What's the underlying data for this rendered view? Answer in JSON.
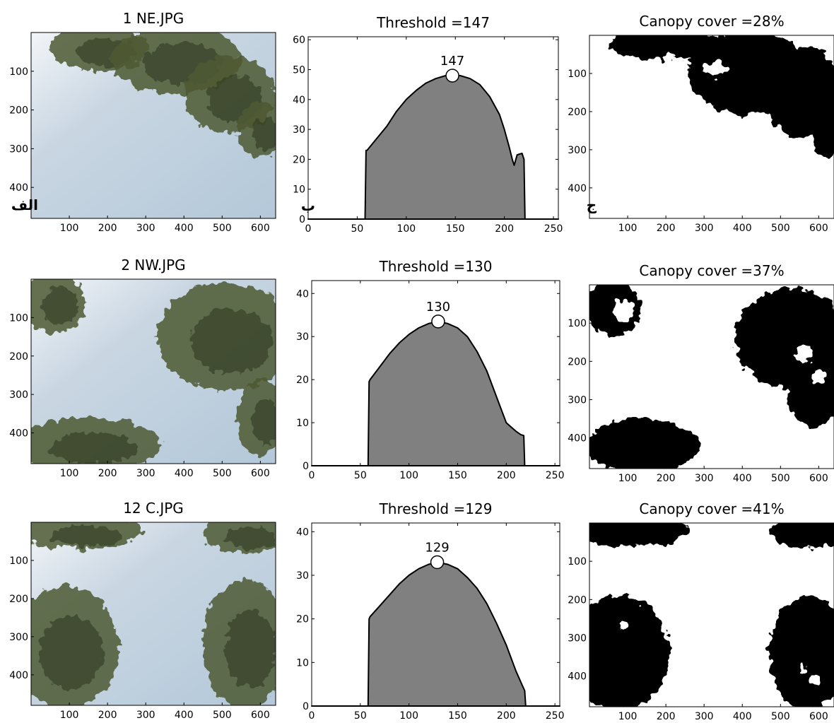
{
  "chart_data": [
    {
      "type": "image",
      "title": "1 NE.JPG",
      "panel_label": "الف",
      "x_ticks": [
        100,
        200,
        300,
        400,
        500,
        600
      ],
      "y_ticks": [
        100,
        200,
        300,
        400
      ],
      "xlim": [
        0,
        640
      ],
      "ylim": [
        0,
        480
      ],
      "foliage": [
        {
          "cx": 180,
          "cy": 40,
          "rx": 130,
          "ry": 60
        },
        {
          "cx": 380,
          "cy": 70,
          "rx": 170,
          "ry": 90
        },
        {
          "cx": 520,
          "cy": 160,
          "rx": 120,
          "ry": 100
        },
        {
          "cx": 600,
          "cy": 250,
          "rx": 60,
          "ry": 70
        }
      ]
    },
    {
      "type": "area",
      "title": "Threshold =147",
      "panel_label": "ب",
      "threshold": 147,
      "threshold_label": "147",
      "x_ticks": [
        0,
        50,
        100,
        150,
        200,
        250
      ],
      "y_ticks": [
        0,
        10,
        20,
        30,
        40,
        50,
        60
      ],
      "xlim": [
        0,
        255
      ],
      "ylim": [
        0,
        61
      ],
      "x": [
        0,
        58,
        59,
        60,
        70,
        80,
        90,
        100,
        110,
        120,
        130,
        140,
        147,
        155,
        165,
        175,
        185,
        195,
        200,
        205,
        208,
        210,
        213,
        218,
        220,
        221,
        255
      ],
      "y": [
        0,
        0,
        23,
        23,
        27,
        31,
        36,
        40,
        43,
        45.5,
        47,
        48,
        48,
        48,
        47,
        45,
        41,
        35,
        30,
        24,
        20,
        18,
        21.5,
        22,
        20,
        0,
        0
      ]
    },
    {
      "type": "heatmap",
      "title": "Canopy cover =28%",
      "panel_label": "ج",
      "x_ticks": [
        100,
        200,
        300,
        400,
        500,
        600
      ],
      "y_ticks": [
        100,
        200,
        300,
        400
      ],
      "xlim": [
        0,
        640
      ],
      "ylim": [
        0,
        480
      ],
      "canopy": [
        {
          "cx": 200,
          "cy": 25,
          "rx": 150,
          "ry": 40
        },
        {
          "cx": 420,
          "cy": 100,
          "rx": 160,
          "ry": 110
        },
        {
          "cx": 560,
          "cy": 150,
          "rx": 100,
          "ry": 120
        },
        {
          "cx": 620,
          "cy": 260,
          "rx": 40,
          "ry": 60
        }
      ],
      "gaps": [
        {
          "cx": 330,
          "cy": 90,
          "rx": 35,
          "ry": 20
        },
        {
          "cx": 210,
          "cy": 60,
          "rx": 18,
          "ry": 14
        }
      ]
    },
    {
      "type": "image",
      "title": "2 NW.JPG",
      "panel_label": "",
      "x_ticks": [
        100,
        200,
        300,
        400,
        500,
        600
      ],
      "y_ticks": [
        100,
        200,
        300,
        400
      ],
      "xlim": [
        0,
        640
      ],
      "ylim": [
        0,
        480
      ],
      "foliage": [
        {
          "cx": 60,
          "cy": 60,
          "rx": 80,
          "ry": 80
        },
        {
          "cx": 510,
          "cy": 150,
          "rx": 180,
          "ry": 140
        },
        {
          "cx": 600,
          "cy": 360,
          "rx": 60,
          "ry": 100
        },
        {
          "cx": 150,
          "cy": 430,
          "rx": 190,
          "ry": 70
        }
      ]
    },
    {
      "type": "area",
      "title": "Threshold =130",
      "panel_label": "",
      "threshold": 130,
      "threshold_label": "130",
      "x_ticks": [
        0,
        50,
        100,
        150,
        200,
        250
      ],
      "y_ticks": [
        0,
        10,
        20,
        30,
        40
      ],
      "xlim": [
        0,
        255
      ],
      "ylim": [
        0,
        43
      ],
      "x": [
        0,
        58,
        59,
        60,
        70,
        80,
        90,
        100,
        110,
        120,
        130,
        140,
        150,
        160,
        170,
        180,
        190,
        195,
        200,
        205,
        210,
        215,
        218,
        219,
        255
      ],
      "y": [
        0,
        0,
        19.5,
        20,
        23,
        26,
        28.5,
        30.5,
        32,
        33,
        33.5,
        33,
        32,
        30,
        26.5,
        22,
        16,
        13,
        10,
        9,
        8,
        7.2,
        7,
        0,
        0
      ]
    },
    {
      "type": "heatmap",
      "title": "Canopy cover =37%",
      "panel_label": "",
      "x_ticks": [
        100,
        200,
        300,
        400,
        500,
        600
      ],
      "y_ticks": [
        100,
        200,
        300,
        400
      ],
      "xlim": [
        0,
        640
      ],
      "ylim": [
        0,
        480
      ],
      "canopy": [
        {
          "cx": 60,
          "cy": 60,
          "rx": 70,
          "ry": 75
        },
        {
          "cx": 530,
          "cy": 140,
          "rx": 150,
          "ry": 130
        },
        {
          "cx": 590,
          "cy": 280,
          "rx": 70,
          "ry": 90
        },
        {
          "cx": 140,
          "cy": 420,
          "rx": 150,
          "ry": 70
        }
      ],
      "gaps": [
        {
          "cx": 90,
          "cy": 70,
          "rx": 28,
          "ry": 30
        },
        {
          "cx": 560,
          "cy": 180,
          "rx": 22,
          "ry": 22
        },
        {
          "cx": 600,
          "cy": 240,
          "rx": 18,
          "ry": 18
        }
      ]
    },
    {
      "type": "image",
      "title": "12 C.JPG",
      "panel_label": "",
      "x_ticks": [
        100,
        200,
        300,
        400,
        500,
        600
      ],
      "y_ticks": [
        100,
        200,
        300,
        400
      ],
      "xlim": [
        0,
        640
      ],
      "ylim": [
        0,
        480
      ],
      "foliage": [
        {
          "cx": 130,
          "cy": 25,
          "rx": 160,
          "ry": 45
        },
        {
          "cx": 560,
          "cy": 30,
          "rx": 110,
          "ry": 50
        },
        {
          "cx": 90,
          "cy": 330,
          "rx": 140,
          "ry": 160
        },
        {
          "cx": 560,
          "cy": 320,
          "rx": 110,
          "ry": 170
        }
      ]
    },
    {
      "type": "area",
      "title": "Threshold =129",
      "panel_label": "",
      "threshold": 129,
      "threshold_label": "129",
      "x_ticks": [
        0,
        50,
        100,
        150,
        200,
        250
      ],
      "y_ticks": [
        0,
        10,
        20,
        30,
        40
      ],
      "xlim": [
        0,
        255
      ],
      "ylim": [
        0,
        42
      ],
      "x": [
        0,
        58,
        59,
        60,
        70,
        80,
        90,
        100,
        110,
        120,
        129,
        140,
        150,
        160,
        170,
        180,
        190,
        200,
        210,
        215,
        219,
        220,
        255
      ],
      "y": [
        0,
        0,
        20,
        20.5,
        23,
        25.5,
        28,
        30,
        31.5,
        32.5,
        33,
        32.5,
        31.5,
        29.5,
        27,
        23.5,
        19,
        14,
        8,
        5.5,
        3.5,
        0,
        0
      ]
    },
    {
      "type": "heatmap",
      "title": "Canopy cover =41%",
      "panel_label": "",
      "x_ticks": [
        100,
        200,
        300,
        400,
        500,
        600
      ],
      "y_ticks": [
        100,
        200,
        300,
        400
      ],
      "xlim": [
        0,
        640
      ],
      "ylim": [
        0,
        480
      ],
      "canopy": [
        {
          "cx": 110,
          "cy": 20,
          "rx": 150,
          "ry": 40
        },
        {
          "cx": 570,
          "cy": 25,
          "rx": 100,
          "ry": 40
        },
        {
          "cx": 80,
          "cy": 340,
          "rx": 130,
          "ry": 150
        },
        {
          "cx": 570,
          "cy": 340,
          "rx": 100,
          "ry": 150
        }
      ],
      "gaps": [
        {
          "cx": 90,
          "cy": 270,
          "rx": 10,
          "ry": 10
        },
        {
          "cx": 590,
          "cy": 410,
          "rx": 14,
          "ry": 14
        },
        {
          "cx": 560,
          "cy": 380,
          "rx": 10,
          "ry": 10
        }
      ]
    }
  ]
}
